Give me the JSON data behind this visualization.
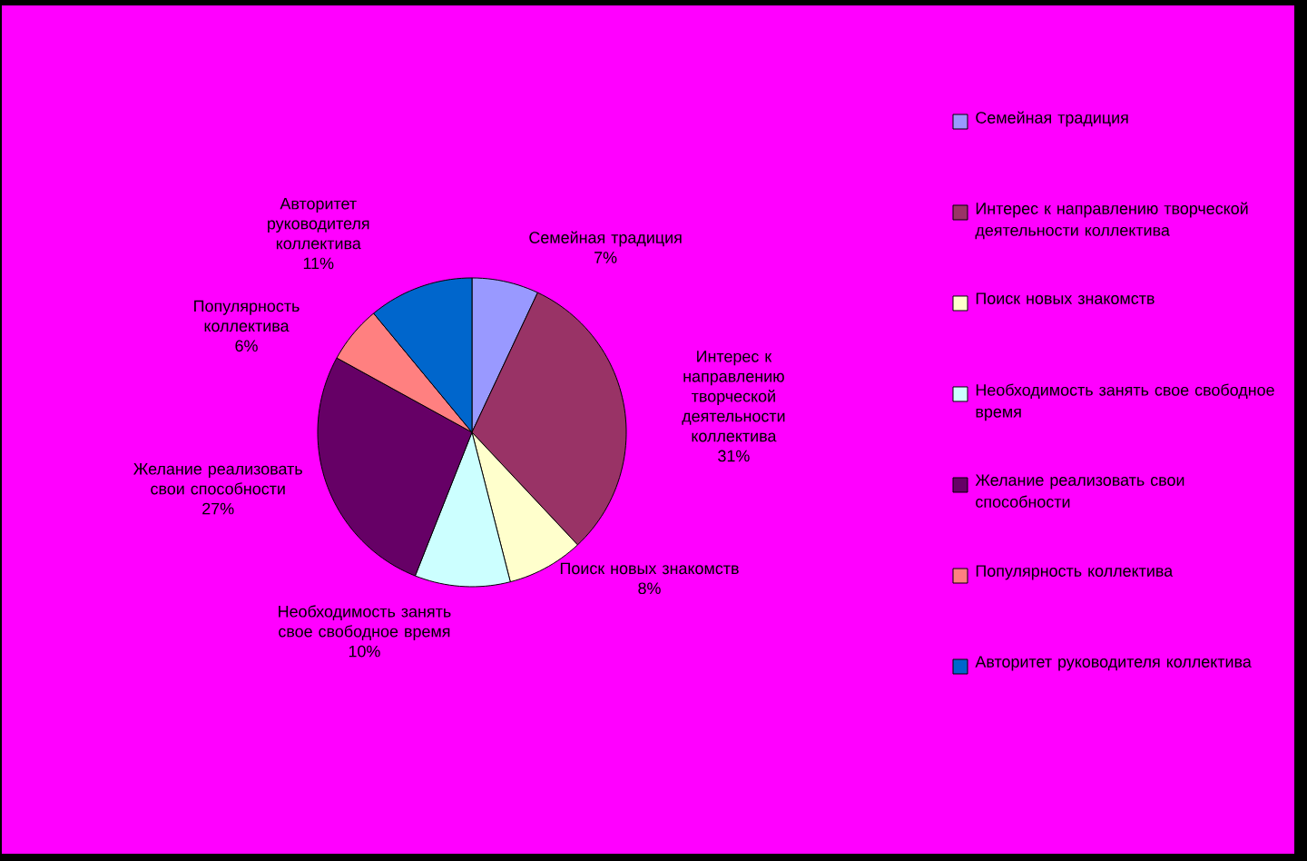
{
  "chart_data": {
    "type": "pie",
    "categories": [
      "Семейная традиция",
      "Интерес к направлению творческой деятельности коллектива",
      "Поиск новых знакомств",
      "Необходимость занять свое свободное время",
      "Желание реализовать свои способности",
      "Популярность коллектива",
      "Авторитет руководителя коллектива"
    ],
    "values": [
      7,
      31,
      8,
      10,
      27,
      6,
      11
    ],
    "colors": [
      "#9999ff",
      "#993366",
      "#ffffcc",
      "#ccffff",
      "#660066",
      "#ff8080",
      "#0066cc"
    ],
    "value_labels": [
      "7%",
      "31%",
      "8%",
      "10%",
      "27%",
      "6%",
      "11%"
    ],
    "legend": "right"
  }
}
